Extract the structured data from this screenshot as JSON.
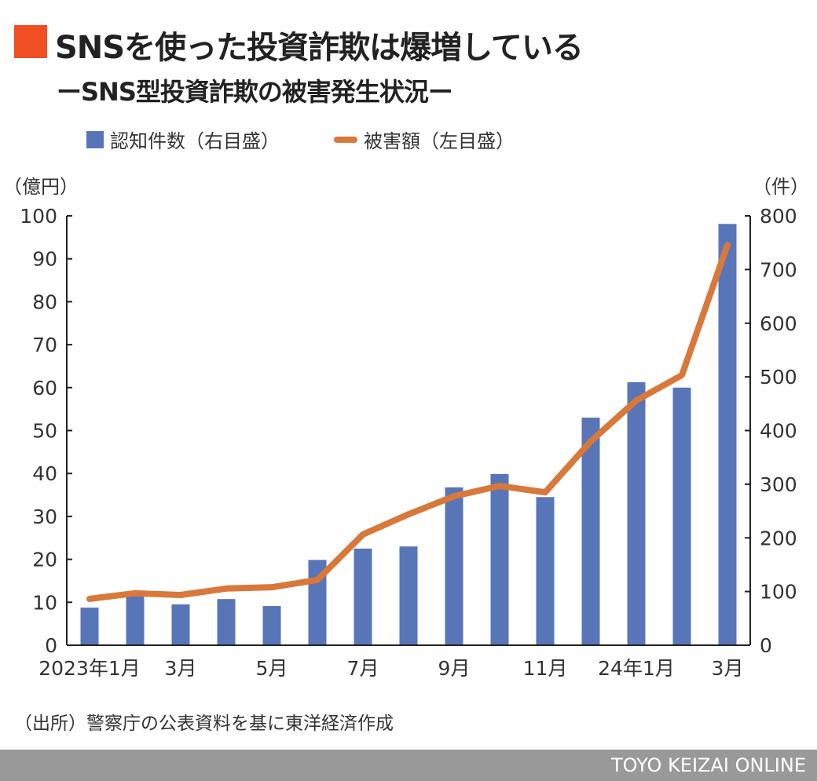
{
  "title": "SNSを使った投資詐欺は爆増している",
  "subtitle": "ーSNS型投資詐欺の被害発生状況ー",
  "source": "（出所）警察庁の公表資料を基に東洋経済作成",
  "footer": "TOYO KEIZAI ONLINE",
  "colors": {
    "title_mark": "#f04e23",
    "bar": "#5875b8",
    "line": "#d8783a",
    "footer": "#999999"
  },
  "chart_data": {
    "type": "bar+line",
    "categories": [
      "2023年1月",
      "",
      "3月",
      "",
      "5月",
      "",
      "7月",
      "",
      "9月",
      "",
      "11月",
      "",
      "24年1月",
      "",
      "3月"
    ],
    "series": [
      {
        "name": "認知件数（右目盛）",
        "type": "bar",
        "axis": "right",
        "values": [
          70,
          91,
          76,
          86,
          73,
          159,
          180,
          184,
          294,
          319,
          276,
          424,
          490,
          480,
          785
        ]
      },
      {
        "name": "被害額（左目盛）",
        "type": "line",
        "axis": "left",
        "values": [
          10.8,
          12.1,
          11.7,
          13.2,
          13.5,
          15.2,
          25.8,
          30.5,
          34.7,
          37.1,
          35.6,
          47.5,
          57.0,
          62.9,
          93.2
        ]
      }
    ],
    "left_axis": {
      "unit": "（億円）",
      "ylim": [
        0,
        100
      ],
      "ticks": [
        0,
        10,
        20,
        30,
        40,
        50,
        60,
        70,
        80,
        90,
        100
      ]
    },
    "right_axis": {
      "unit": "（件）",
      "ylim": [
        0,
        800
      ],
      "ticks": [
        0,
        100,
        200,
        300,
        400,
        500,
        600,
        700,
        800
      ]
    },
    "grid": false,
    "legend": "top"
  }
}
